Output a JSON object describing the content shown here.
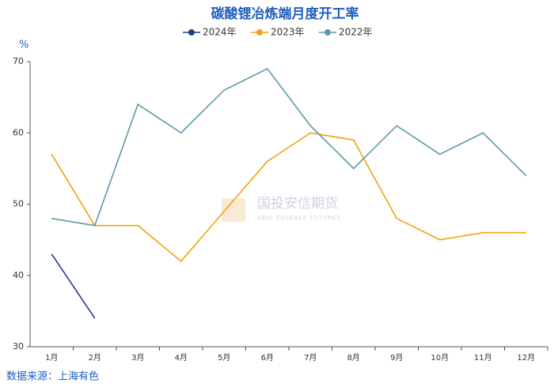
{
  "chart_data": {
    "type": "line",
    "title": "碳酸锂冶炼端月度开工率",
    "y_unit": "%",
    "source": "数据来源：上海有色",
    "watermark": "国投安信期货",
    "watermark_sub": "SDIC ESSENCE FUTURES",
    "categories": [
      "1月",
      "2月",
      "3月",
      "4月",
      "5月",
      "6月",
      "7月",
      "8月",
      "9月",
      "10月",
      "11月",
      "12月"
    ],
    "series": [
      {
        "name": "2024年",
        "color": "#1f3c8f",
        "values": [
          43,
          34,
          null,
          null,
          null,
          null,
          null,
          null,
          null,
          null,
          null,
          null
        ]
      },
      {
        "name": "2023年",
        "color": "#f0a30a",
        "values": [
          57,
          47,
          47,
          42,
          49,
          56,
          60,
          59,
          48,
          45,
          46,
          46
        ]
      },
      {
        "name": "2022年",
        "color": "#5b9aa8",
        "values": [
          48,
          47,
          64,
          60,
          66,
          69,
          61,
          55,
          61,
          57,
          60,
          54
        ]
      }
    ],
    "ylim": [
      30,
      70
    ],
    "yticks": [
      30,
      40,
      50,
      60,
      70
    ],
    "grid": false
  }
}
